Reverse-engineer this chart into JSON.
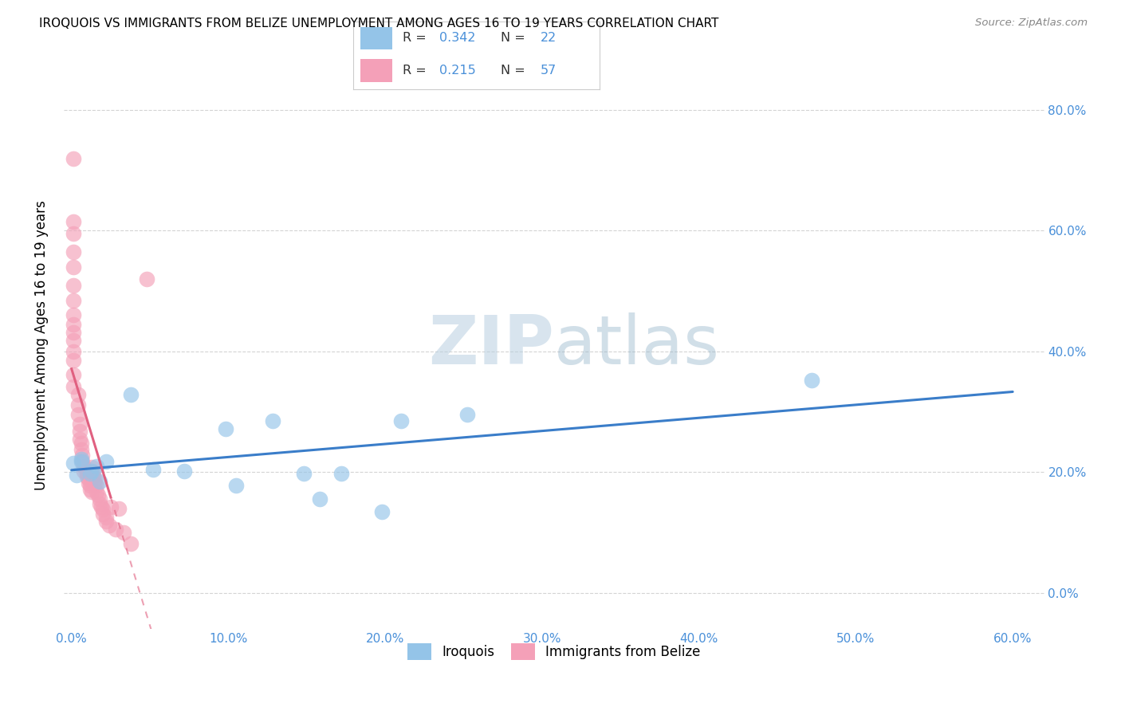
{
  "title": "IROQUOIS VS IMMIGRANTS FROM BELIZE UNEMPLOYMENT AMONG AGES 16 TO 19 YEARS CORRELATION CHART",
  "source": "Source: ZipAtlas.com",
  "ylabel": "Unemployment Among Ages 16 to 19 years",
  "iroquois_color": "#94c4e8",
  "belize_color": "#f4a0b8",
  "iroquois_line_color": "#3a7dc9",
  "belize_line_color": "#e06080",
  "watermark_color": "#d0e4f0",
  "xlim": [
    -0.005,
    0.62
  ],
  "ylim": [
    -0.06,
    0.88
  ],
  "x_ticks": [
    0.0,
    0.1,
    0.2,
    0.3,
    0.4,
    0.5,
    0.6
  ],
  "x_tick_labels": [
    "0.0%",
    "10.0%",
    "20.0%",
    "30.0%",
    "40.0%",
    "50.0%",
    "60.0%"
  ],
  "y_ticks": [
    0.0,
    0.2,
    0.4,
    0.6,
    0.8
  ],
  "y_tick_labels": [
    "0.0%",
    "20.0%",
    "40.0%",
    "60.0%",
    "80.0%"
  ],
  "iroquois_x": [
    0.001,
    0.003,
    0.006,
    0.006,
    0.012,
    0.013,
    0.016,
    0.018,
    0.022,
    0.038,
    0.052,
    0.072,
    0.098,
    0.105,
    0.128,
    0.148,
    0.158,
    0.172,
    0.198,
    0.21,
    0.252,
    0.472
  ],
  "iroquois_y": [
    0.215,
    0.195,
    0.218,
    0.222,
    0.198,
    0.202,
    0.21,
    0.185,
    0.218,
    0.328,
    0.205,
    0.202,
    0.272,
    0.178,
    0.285,
    0.198,
    0.155,
    0.198,
    0.135,
    0.285,
    0.295,
    0.352
  ],
  "belize_x": [
    0.001,
    0.001,
    0.001,
    0.001,
    0.001,
    0.001,
    0.001,
    0.001,
    0.001,
    0.001,
    0.001,
    0.001,
    0.001,
    0.001,
    0.001,
    0.004,
    0.004,
    0.004,
    0.005,
    0.005,
    0.005,
    0.006,
    0.006,
    0.007,
    0.007,
    0.008,
    0.008,
    0.01,
    0.01,
    0.011,
    0.011,
    0.012,
    0.012,
    0.013,
    0.013,
    0.014,
    0.014,
    0.015,
    0.015,
    0.016,
    0.016,
    0.017,
    0.018,
    0.018,
    0.019,
    0.02,
    0.02,
    0.022,
    0.022,
    0.024,
    0.025,
    0.028,
    0.03,
    0.033,
    0.038,
    0.048
  ],
  "belize_y": [
    0.72,
    0.615,
    0.595,
    0.565,
    0.54,
    0.51,
    0.485,
    0.46,
    0.445,
    0.432,
    0.418,
    0.4,
    0.385,
    0.362,
    0.342,
    0.328,
    0.312,
    0.295,
    0.28,
    0.268,
    0.255,
    0.248,
    0.238,
    0.228,
    0.218,
    0.21,
    0.202,
    0.198,
    0.192,
    0.188,
    0.182,
    0.178,
    0.172,
    0.168,
    0.208,
    0.2,
    0.192,
    0.188,
    0.182,
    0.178,
    0.168,
    0.162,
    0.155,
    0.148,
    0.142,
    0.138,
    0.13,
    0.125,
    0.118,
    0.112,
    0.142,
    0.105,
    0.14,
    0.1,
    0.082,
    0.52
  ]
}
